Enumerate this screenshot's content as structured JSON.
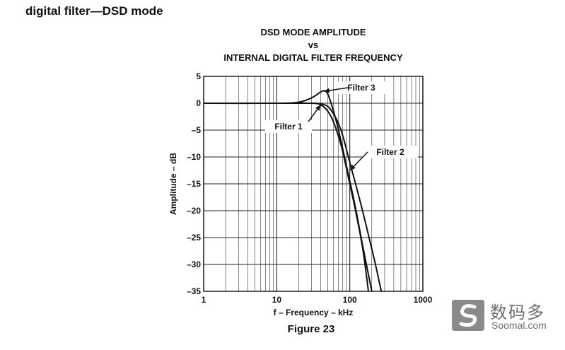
{
  "page": {
    "heading": "digital filter—DSD mode",
    "figure_caption": "Figure 23"
  },
  "watermark": {
    "cn_text": "数码多",
    "en_text": "Soomal.com",
    "icon": "soomal-logo-icon"
  },
  "chart_data": {
    "type": "line",
    "title_lines": [
      "DSD MODE AMPLITUDE",
      "vs",
      "INTERNAL DIGITAL FILTER FREQUENCY"
    ],
    "xlabel": "f – Frequency – kHz",
    "ylabel": "Amplitude – dB",
    "x_scale": "log",
    "xlim": [
      1,
      1000
    ],
    "ylim": [
      -35,
      5
    ],
    "x_ticks": [
      1,
      10,
      100,
      1000
    ],
    "x_tick_labels": [
      "1",
      "10",
      "100",
      "1000"
    ],
    "y_ticks": [
      5,
      0,
      -5,
      -10,
      -15,
      -20,
      -25,
      -30,
      -35
    ],
    "y_tick_labels": [
      "5",
      "0",
      "–5",
      "–10",
      "–15",
      "–20",
      "–25",
      "–30",
      "–35"
    ],
    "grid": true,
    "series": [
      {
        "name": "Filter 1",
        "x": [
          1,
          10,
          30,
          40,
          50,
          60,
          70,
          80,
          100,
          120,
          150,
          180
        ],
        "y": [
          0,
          0,
          0,
          -0.3,
          -1.5,
          -3.5,
          -6.2,
          -9,
          -15,
          -20,
          -27,
          -35
        ]
      },
      {
        "name": "Filter 2",
        "x": [
          1,
          10,
          30,
          40,
          50,
          60,
          70,
          80,
          100,
          140,
          180,
          220,
          270
        ],
        "y": [
          0,
          0,
          0,
          -0.1,
          -0.6,
          -2,
          -3.8,
          -6,
          -11,
          -18.5,
          -24.5,
          -29.5,
          -35
        ]
      },
      {
        "name": "Filter 3",
        "x": [
          1,
          10,
          20,
          30,
          40,
          45,
          50,
          60,
          70,
          80,
          100,
          120,
          150,
          200
        ],
        "y": [
          0,
          0,
          0.2,
          1,
          2.1,
          2.3,
          1.7,
          -1.5,
          -5,
          -8.5,
          -14.5,
          -19.5,
          -26.5,
          -35
        ]
      }
    ],
    "annotations": [
      {
        "text": "Filter 3",
        "points_to": {
          "x": 44,
          "y": 2.2
        }
      },
      {
        "text": "Filter 1",
        "points_to": {
          "x": 40,
          "y": -0.3
        }
      },
      {
        "text": "Filter 2",
        "points_to": {
          "x": 100,
          "y": -12.5
        }
      }
    ]
  }
}
